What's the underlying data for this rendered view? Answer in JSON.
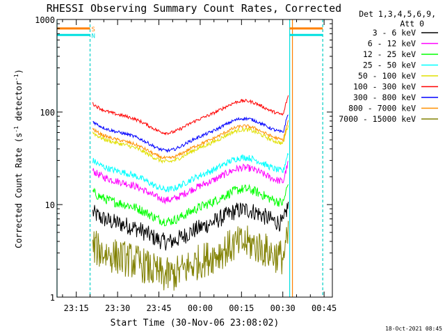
{
  "chart_data": {
    "type": "line",
    "title": "RHESSI Observing Summary Count Rates, Corrected",
    "xlabel": "Start Time (30-Nov-06 23:08:02)",
    "ylabel_main": "Corrected Count Rate (s",
    "ylabel_sup1": "-1",
    "ylabel_mid": " detector",
    "ylabel_sup2": "-1",
    "ylabel_end": ")",
    "y_scale": "log",
    "ylim": [
      1,
      1000
    ],
    "y_ticks": [
      {
        "value": 1,
        "label": "1"
      },
      {
        "value": 10,
        "label": "10"
      },
      {
        "value": 100,
        "label": "100"
      },
      {
        "value": 1000,
        "label": "1000"
      }
    ],
    "x_unit": "minutes",
    "xlim": [
      0,
      100
    ],
    "x_ticks": [
      {
        "value": 7,
        "label": "23:15"
      },
      {
        "value": 22,
        "label": "23:30"
      },
      {
        "value": 37,
        "label": "23:45"
      },
      {
        "value": 52,
        "label": "00:00"
      },
      {
        "value": 67,
        "label": "00:15"
      },
      {
        "value": 82,
        "label": "00:30"
      },
      {
        "value": 97,
        "label": "00:45"
      }
    ],
    "legend_header": [
      "Det 1,3,4,5,6,9,",
      "Att 0"
    ],
    "legend_position": "right",
    "timestamp": "18-Oct-2021 08:45",
    "flags": [
      {
        "label": "S",
        "color": "#ff8000",
        "value": 800
      },
      {
        "label": "N",
        "color": "#00e0e0",
        "value": 680
      }
    ],
    "segment": {
      "start": 12,
      "end": 84.5
    },
    "vlines": [
      {
        "x": 0,
        "color": "#00e0e0",
        "style": "solid"
      },
      {
        "x": 12,
        "color": "#ff7030",
        "style": "dashed"
      },
      {
        "x": 12,
        "color": "#00e0e0",
        "style": "dashed"
      },
      {
        "x": 84.5,
        "color": "#00e0e0",
        "style": "solid"
      },
      {
        "x": 85.5,
        "color": "#ff8000",
        "style": "solid"
      },
      {
        "x": 96.5,
        "color": "#ff7030",
        "style": "dashed"
      },
      {
        "x": 96.5,
        "color": "#00e0e0",
        "style": "dashed"
      }
    ],
    "series": [
      {
        "name": "3 - 6 keV",
        "color": "#000000",
        "level": 6,
        "noise": 0.22
      },
      {
        "name": "6 - 12 keV",
        "color": "#ff00ff",
        "level": 17,
        "noise": 0.09
      },
      {
        "name": "12 - 25 keV",
        "color": "#00ff00",
        "level": 10,
        "noise": 0.12
      },
      {
        "name": "25 - 50 keV",
        "color": "#00ffff",
        "level": 22,
        "noise": 0.08
      },
      {
        "name": "50 - 100 keV",
        "color": "#e0e000",
        "level": 44,
        "noise": 0.05
      },
      {
        "name": "100 - 300 keV",
        "color": "#ff0000",
        "level": 90,
        "noise": 0.04
      },
      {
        "name": "300 - 800 keV",
        "color": "#0000ff",
        "level": 58,
        "noise": 0.04
      },
      {
        "name": "800 - 7000 keV",
        "color": "#ff9000",
        "level": 48,
        "noise": 0.04
      },
      {
        "name": "7000 - 15000 keV",
        "color": "#808000",
        "level": 2.6,
        "noise": 0.45
      }
    ]
  }
}
